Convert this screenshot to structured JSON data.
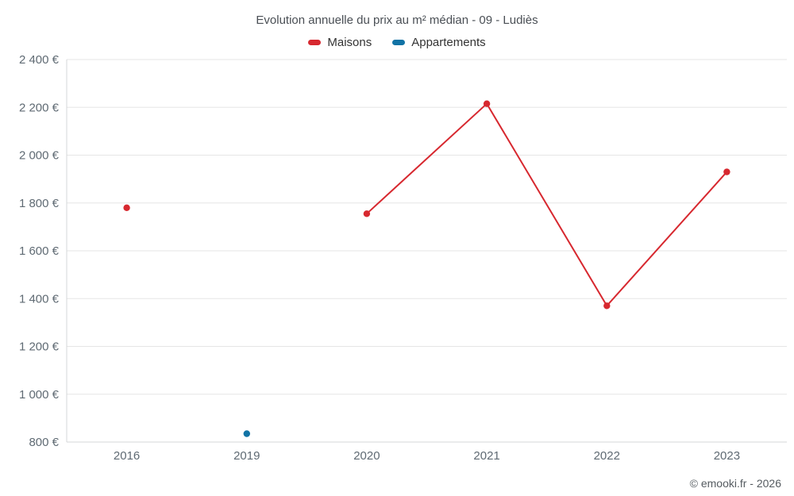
{
  "title": "Evolution annuelle du prix au m² médian - 09 - Ludiès",
  "footer": "© emooki.fr - 2026",
  "chart_data": {
    "type": "line",
    "categories": [
      "2016",
      "2019",
      "2020",
      "2021",
      "2022",
      "2023"
    ],
    "series": [
      {
        "name": "Maisons",
        "color": "#d7282f",
        "values": [
          1780,
          null,
          1755,
          2215,
          1370,
          1930
        ]
      },
      {
        "name": "Appartements",
        "color": "#1173a5",
        "values": [
          null,
          835,
          null,
          null,
          null,
          null
        ]
      }
    ],
    "title": "Evolution annuelle du prix au m² médian - 09 - Ludiès",
    "xlabel": "",
    "ylabel": "",
    "ylim": [
      800,
      2400
    ],
    "ytick_step": 200,
    "ytick_suffix": " €",
    "grid": true,
    "legend_position": "top",
    "marker": "circle",
    "background": "#ffffff",
    "gridline_color": "#e6e6e6"
  }
}
